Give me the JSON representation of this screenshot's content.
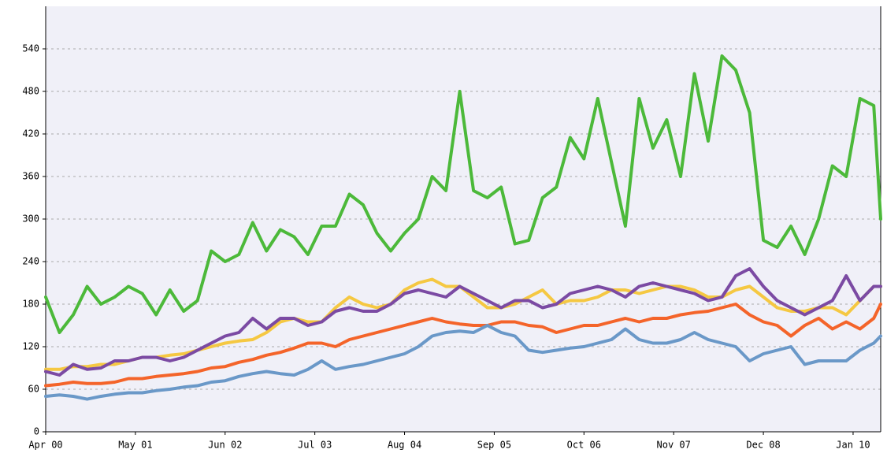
{
  "chart_data": {
    "type": "line",
    "x": [
      0,
      2,
      4,
      6,
      8,
      10,
      12,
      14,
      16,
      18,
      20,
      22,
      24,
      26,
      28,
      30,
      32,
      34,
      36,
      38,
      40,
      42,
      44,
      46,
      48,
      50,
      52,
      54,
      56,
      58,
      60,
      62,
      64,
      66,
      68,
      70,
      72,
      74,
      76,
      78,
      80,
      82,
      84,
      86,
      88,
      90,
      92,
      94,
      96,
      98,
      100,
      102,
      104,
      106,
      108,
      110,
      112,
      114,
      116,
      118,
      120,
      121
    ],
    "xlim": [
      0,
      121
    ],
    "xticks": [
      {
        "value": 0,
        "label": "Apr 00"
      },
      {
        "value": 13,
        "label": "May 01"
      },
      {
        "value": 26,
        "label": "Jun 02"
      },
      {
        "value": 39,
        "label": "Jul 03"
      },
      {
        "value": 52,
        "label": "Aug 04"
      },
      {
        "value": 65,
        "label": "Sep 05"
      },
      {
        "value": 78,
        "label": "Oct 06"
      },
      {
        "value": 91,
        "label": "Nov 07"
      },
      {
        "value": 104,
        "label": "Dec 08"
      },
      {
        "value": 117,
        "label": "Jan 10"
      }
    ],
    "ylim": [
      0,
      600
    ],
    "yticks": [
      0,
      60,
      120,
      180,
      240,
      300,
      360,
      420,
      480,
      540
    ],
    "grid": true,
    "series": [
      {
        "color": "#f5c842",
        "values": [
          88,
          88,
          92,
          92,
          95,
          95,
          100,
          105,
          105,
          108,
          110,
          115,
          120,
          125,
          128,
          130,
          140,
          155,
          160,
          155,
          155,
          175,
          190,
          180,
          175,
          180,
          200,
          210,
          215,
          205,
          205,
          190,
          175,
          175,
          180,
          190,
          200,
          180,
          185,
          185,
          190,
          200,
          200,
          195,
          200,
          205,
          205,
          200,
          190,
          190,
          200,
          205,
          190,
          175,
          170,
          170,
          175,
          175,
          165,
          185,
          205,
          205
        ]
      },
      {
        "color": "#7b4aa3",
        "values": [
          85,
          80,
          95,
          88,
          90,
          100,
          100,
          105,
          105,
          100,
          105,
          115,
          125,
          135,
          140,
          160,
          145,
          160,
          160,
          150,
          155,
          170,
          175,
          170,
          170,
          180,
          195,
          200,
          195,
          190,
          205,
          195,
          185,
          175,
          185,
          185,
          175,
          180,
          195,
          200,
          205,
          200,
          190,
          205,
          210,
          205,
          200,
          195,
          185,
          190,
          220,
          230,
          205,
          185,
          175,
          165,
          175,
          185,
          220,
          185,
          205,
          205
        ]
      },
      {
        "color": "#f4642a",
        "values": [
          65,
          67,
          70,
          68,
          68,
          70,
          75,
          75,
          78,
          80,
          82,
          85,
          90,
          92,
          98,
          102,
          108,
          112,
          118,
          125,
          125,
          120,
          130,
          135,
          140,
          145,
          150,
          155,
          160,
          155,
          152,
          150,
          150,
          155,
          155,
          150,
          148,
          140,
          145,
          150,
          150,
          155,
          160,
          155,
          160,
          160,
          165,
          168,
          170,
          175,
          180,
          165,
          155,
          150,
          135,
          150,
          160,
          145,
          155,
          145,
          160,
          180
        ]
      },
      {
        "color": "#6a98c8",
        "values": [
          50,
          52,
          50,
          46,
          50,
          53,
          55,
          55,
          58,
          60,
          63,
          65,
          70,
          72,
          78,
          82,
          85,
          82,
          80,
          88,
          100,
          88,
          92,
          95,
          100,
          105,
          110,
          120,
          135,
          140,
          142,
          140,
          150,
          140,
          135,
          115,
          112,
          115,
          118,
          120,
          125,
          130,
          145,
          130,
          125,
          125,
          130,
          140,
          130,
          125,
          120,
          100,
          110,
          115,
          120,
          95,
          100,
          100,
          100,
          115,
          125,
          135
        ]
      },
      {
        "color": "#4cb93a",
        "values": [
          190,
          140,
          165,
          205,
          180,
          190,
          205,
          195,
          165,
          200,
          170,
          185,
          255,
          240,
          250,
          295,
          255,
          285,
          275,
          250,
          290,
          290,
          335,
          320,
          280,
          255,
          280,
          300,
          360,
          340,
          480,
          340,
          330,
          345,
          265,
          270,
          330,
          345,
          415,
          385,
          470,
          380,
          290,
          470,
          400,
          440,
          360,
          505,
          410,
          530,
          510,
          450,
          270,
          260,
          290,
          250,
          300,
          375,
          360,
          470,
          460,
          300
        ]
      }
    ]
  }
}
